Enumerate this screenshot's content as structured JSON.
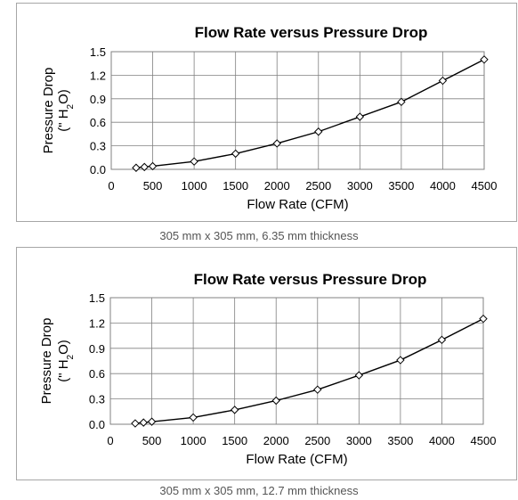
{
  "chart_data": [
    {
      "type": "line",
      "title": "Flow Rate versus Pressure Drop",
      "xlabel": "Flow Rate (CFM)",
      "ylabel": "Pressure Drop",
      "ylabel_unit": "(\" H",
      "ylabel_unit_sub": "2",
      "ylabel_unit_end": "O)",
      "xlim": [
        0,
        4500
      ],
      "ylim": [
        0,
        1.5
      ],
      "xticks": [
        "0",
        "500",
        "1000",
        "1500",
        "2000",
        "2500",
        "3000",
        "3500",
        "4000",
        "4500"
      ],
      "yticks": [
        "0.0",
        "0.3",
        "0.6",
        "0.9",
        "1.2",
        "1.5"
      ],
      "grid": "vertical",
      "marker": "diamond",
      "x": [
        300,
        400,
        500,
        1000,
        1500,
        2000,
        2500,
        3000,
        3500,
        4000,
        4500
      ],
      "y": [
        0.02,
        0.03,
        0.04,
        0.1,
        0.2,
        0.33,
        0.48,
        0.67,
        0.86,
        1.13,
        1.4
      ],
      "caption": "305 mm x 305 mm, 6.35 mm thickness"
    },
    {
      "type": "line",
      "title": "Flow Rate versus Pressure Drop",
      "xlabel": "Flow Rate (CFM)",
      "ylabel": "Pressure Drop",
      "ylabel_unit": "(\" H",
      "ylabel_unit_sub": "2",
      "ylabel_unit_end": "O)",
      "xlim": [
        0,
        4500
      ],
      "ylim": [
        0,
        1.5
      ],
      "xticks": [
        "0",
        "500",
        "1000",
        "1500",
        "2000",
        "2500",
        "3000",
        "3500",
        "4000",
        "4500"
      ],
      "yticks": [
        "0.0",
        "0.3",
        "0.6",
        "0.9",
        "1.2",
        "1.5"
      ],
      "grid": "vertical",
      "marker": "diamond",
      "x": [
        300,
        400,
        500,
        1000,
        1500,
        2000,
        2500,
        3000,
        3500,
        4000,
        4500
      ],
      "y": [
        0.01,
        0.02,
        0.03,
        0.08,
        0.17,
        0.28,
        0.41,
        0.58,
        0.76,
        1.0,
        1.25
      ],
      "caption": "305 mm x 305 mm, 12.7 mm thickness"
    }
  ],
  "colors": {
    "line": "#000000",
    "grid": "#808080",
    "marker_fill": "#ffffff",
    "panel_border": "#a6a6a6",
    "caption": "#555555"
  }
}
